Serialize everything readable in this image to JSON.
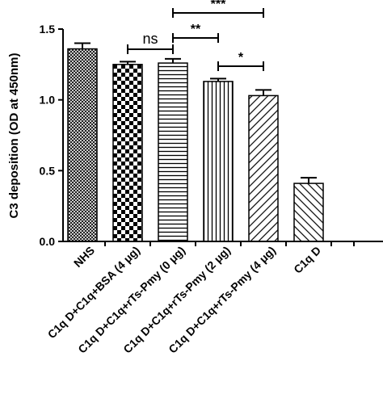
{
  "chart_data": {
    "type": "bar",
    "ylabel": "C3 deposition (OD at 450nm)",
    "ylim": [
      0,
      1.5
    ],
    "yticks": [
      "0.0",
      "0.5",
      "1.0",
      "1.5"
    ],
    "categories": [
      "NHS",
      "C1q D+C1q+BSA (4 μg)",
      "C1q D+C1q+rTs-Pmy (0 μg)",
      "C1q D+C1q+rTs-Pmy (2 μg)",
      "C1q D+C1q+rTs-Pmy (4 μg)",
      "C1q D"
    ],
    "values": [
      1.36,
      1.25,
      1.26,
      1.13,
      1.03,
      0.41
    ],
    "errors": [
      0.04,
      0.02,
      0.03,
      0.02,
      0.04,
      0.04
    ],
    "patterns": [
      "crosshatch-fine",
      "checkerboard",
      "horizontal-lines",
      "vertical-lines",
      "diagonal-forward",
      "diagonal-back"
    ],
    "significance": [
      {
        "label": "ns",
        "from": 1,
        "to": 2
      },
      {
        "label": "**",
        "from": 2,
        "to": 3
      },
      {
        "label": "***",
        "from": 2,
        "to": 4
      },
      {
        "label": "*",
        "from": 3,
        "to": 4
      }
    ]
  }
}
